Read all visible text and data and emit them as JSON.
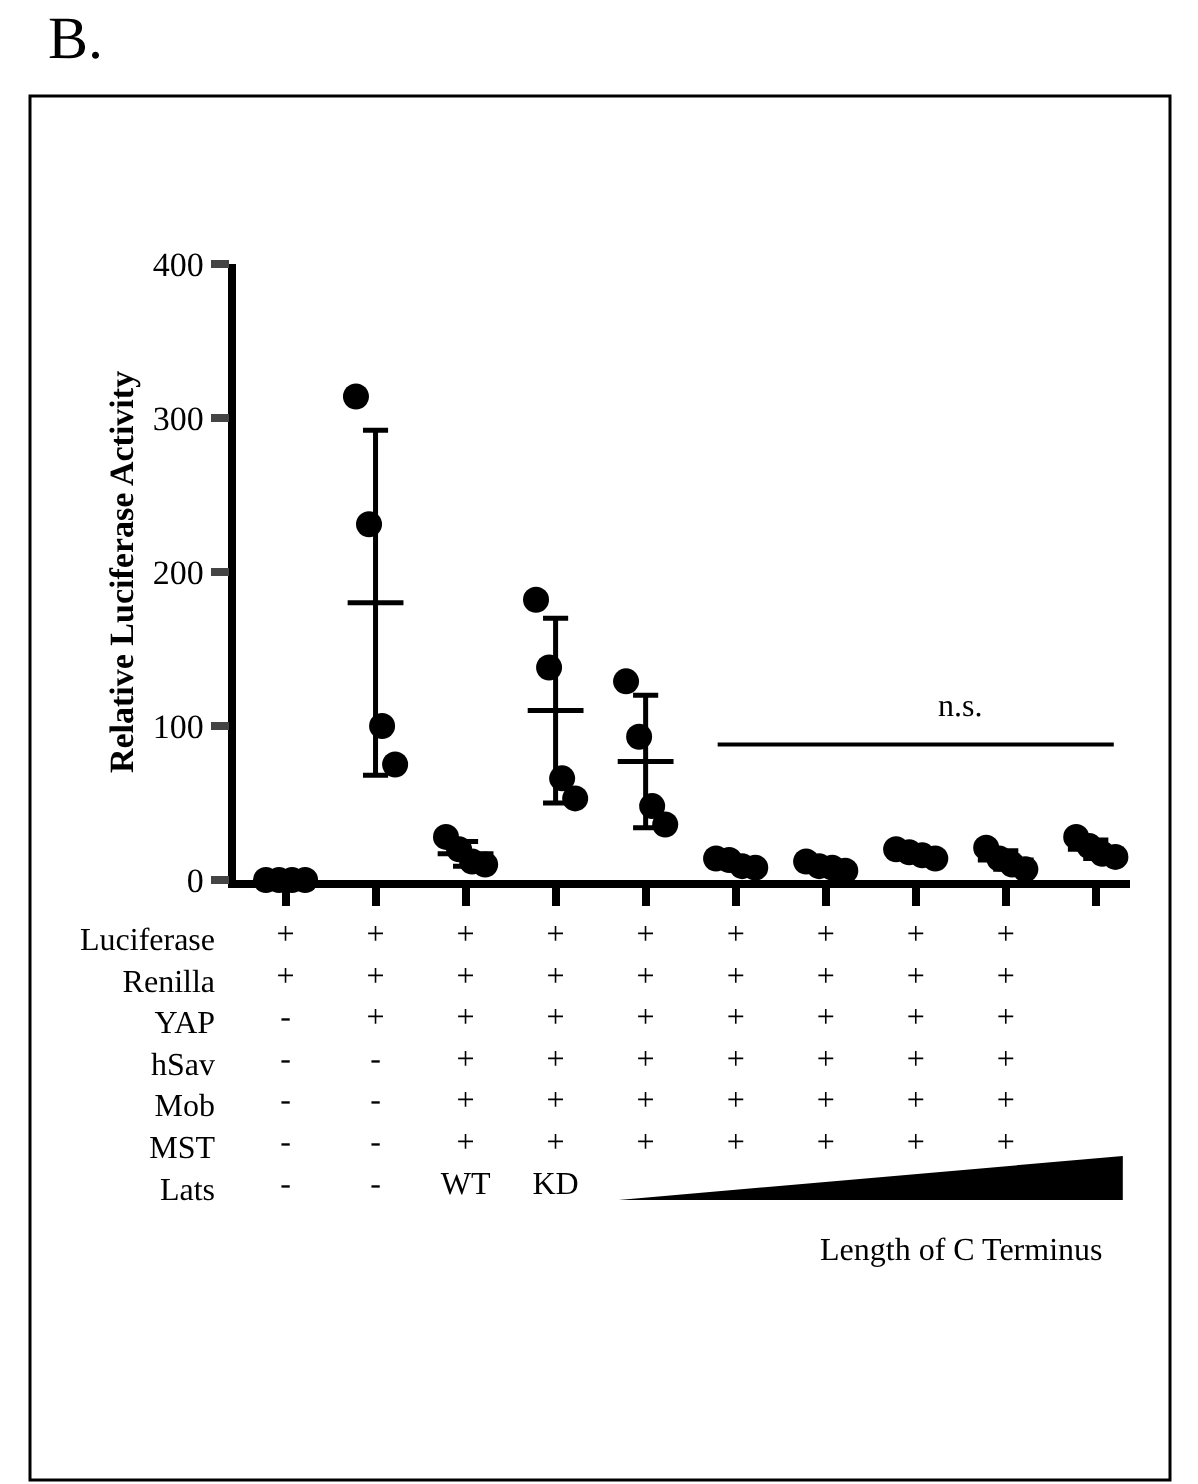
{
  "chart_data": {
    "type": "scatter",
    "title": "B.",
    "ylabel": "Relative Luciferase Activity",
    "categories": [
      "+\n+\n-\n-\n-\n-\n-",
      "+\n+\n+\n-\n-\n-\n-",
      "+\n+\n+\n+\n+\n+\nWT",
      "+\n+\n+\n+\n+\n+\nKD",
      "+\n+\n+\n+\n+\n+",
      "+\n+\n+\n+\n+\n+",
      "+\n+\n+\n+\n+\n+",
      "+\n+\n+\n+\n+\n+",
      "+\n+\n+\n+\n+\n+",
      null
    ],
    "series": [
      {
        "color": "#000000",
        "values": [
          0,
          314,
          28,
          182,
          129,
          14,
          12,
          20,
          21,
          28
        ]
      },
      {
        "color": "#000000",
        "values": [
          0,
          231,
          20,
          138,
          93,
          13,
          9,
          18,
          14,
          22
        ]
      },
      {
        "color": "#000000",
        "values": [
          0,
          100,
          12,
          66,
          48,
          9,
          8,
          16,
          10,
          17
        ]
      },
      {
        "color": "#000000",
        "values": [
          0,
          75,
          10,
          53,
          36,
          8,
          6,
          14,
          7,
          15
        ]
      },
      {
        "type": "box",
        "color": "#000000",
        "boxes": [
          {
            "low": 0,
            "q1": 0.5,
            "median": 0.5,
            "q3": 0.5,
            "high": 1
          },
          {
            "low": 68,
            "q1": 180,
            "median": 180,
            "q3": 180,
            "high": 292
          },
          {
            "low": 9,
            "q1": 17,
            "median": 17,
            "q3": 17,
            "high": 25
          },
          {
            "low": 50,
            "q1": 110,
            "median": 110,
            "q3": 110,
            "high": 170
          },
          {
            "low": 34,
            "q1": 77,
            "median": 77,
            "q3": 77,
            "high": 120
          },
          {
            "low": 8,
            "q1": 11,
            "median": 11,
            "q3": 11,
            "high": 14
          },
          {
            "low": 6.5,
            "q1": 9,
            "median": 9,
            "q3": 9,
            "high": 11.5
          },
          {
            "low": 14,
            "q1": 17,
            "median": 17,
            "q3": 17,
            "high": 20
          },
          {
            "low": 7,
            "q1": 13,
            "median": 13,
            "q3": 13,
            "high": 19
          },
          {
            "low": 14,
            "q1": 20,
            "median": 20,
            "q3": 20,
            "high": 26
          }
        ]
      }
    ],
    "ylim": [
      0,
      400
    ],
    "yticks": [
      0,
      100,
      200,
      300,
      400
    ],
    "annotations": [
      "Luciferase\nRenilla\nYAP\nhSav\nMob\nMST\nLats",
      "n.s.",
      "Length of C Terminus"
    ]
  }
}
